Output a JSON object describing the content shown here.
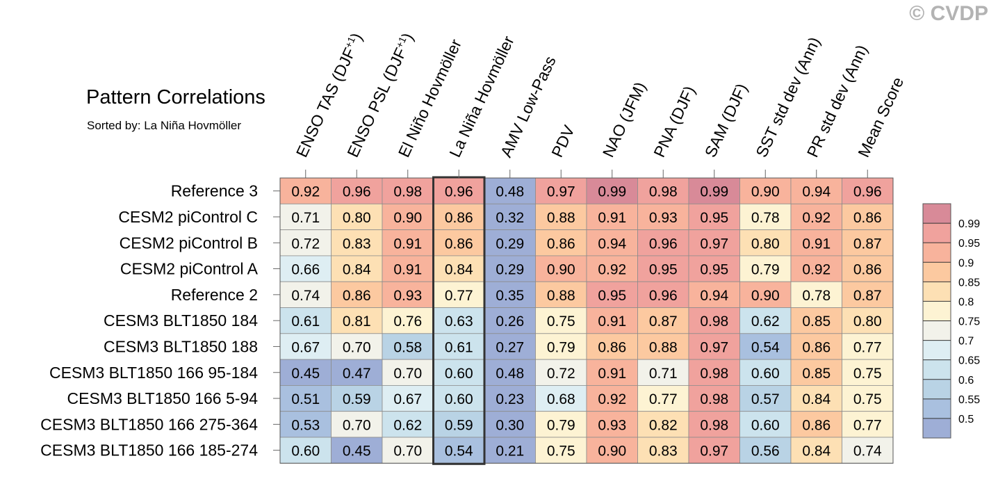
{
  "header": {
    "title": "Pattern Correlations",
    "subtitle": "Sorted by: La Niña Hovmöller",
    "copyright": "© CVDP"
  },
  "chart_data": {
    "type": "heatmap",
    "title": "Pattern Correlations",
    "subtitle": "Sorted by: La Niña Hovmöller",
    "columns": [
      "ENSO TAS (DJF+1)",
      "ENSO PSL (DJF+1)",
      "El Niño Hovmöller",
      "La Niña Hovmöller",
      "AMV Low-Pass",
      "PDV",
      "NAO (JFM)",
      "PNA (DJF)",
      "SAM (DJF)",
      "SST std dev (Ann)",
      "PR std dev (Ann)",
      "Mean Score"
    ],
    "rows": [
      "Reference 3",
      "CESM2 piControl C",
      "CESM2 piControl B",
      "CESM2 piControl A",
      "Reference 2",
      "CESM3 BLT1850 184",
      "CESM3 BLT1850 188",
      "CESM3 BLT1850 166 95-184",
      "CESM3 BLT1850 166 5-94",
      "CESM3 BLT1850 166 275-364",
      "CESM3 BLT1850 166 185-274"
    ],
    "values": [
      [
        0.92,
        0.96,
        0.98,
        0.96,
        0.48,
        0.97,
        0.99,
        0.98,
        0.99,
        0.9,
        0.94,
        0.96
      ],
      [
        0.71,
        0.8,
        0.9,
        0.86,
        0.32,
        0.88,
        0.91,
        0.93,
        0.95,
        0.78,
        0.92,
        0.86
      ],
      [
        0.72,
        0.83,
        0.91,
        0.86,
        0.29,
        0.86,
        0.94,
        0.96,
        0.97,
        0.8,
        0.91,
        0.87
      ],
      [
        0.66,
        0.84,
        0.91,
        0.84,
        0.29,
        0.9,
        0.92,
        0.95,
        0.95,
        0.79,
        0.92,
        0.86
      ],
      [
        0.74,
        0.86,
        0.93,
        0.77,
        0.35,
        0.88,
        0.95,
        0.96,
        0.94,
        0.9,
        0.78,
        0.87
      ],
      [
        0.61,
        0.81,
        0.76,
        0.63,
        0.26,
        0.75,
        0.91,
        0.87,
        0.98,
        0.62,
        0.85,
        0.8
      ],
      [
        0.67,
        0.7,
        0.58,
        0.61,
        0.27,
        0.79,
        0.86,
        0.88,
        0.97,
        0.54,
        0.86,
        0.77
      ],
      [
        0.45,
        0.47,
        0.7,
        0.6,
        0.48,
        0.72,
        0.91,
        0.71,
        0.98,
        0.6,
        0.85,
        0.75
      ],
      [
        0.51,
        0.59,
        0.67,
        0.6,
        0.23,
        0.68,
        0.92,
        0.77,
        0.98,
        0.57,
        0.84,
        0.75
      ],
      [
        0.53,
        0.7,
        0.62,
        0.59,
        0.3,
        0.79,
        0.93,
        0.82,
        0.98,
        0.6,
        0.86,
        0.77
      ],
      [
        0.6,
        0.45,
        0.7,
        0.54,
        0.21,
        0.75,
        0.9,
        0.83,
        0.97,
        0.56,
        0.84,
        0.74
      ]
    ],
    "highlighted_column": "La Niña Hovmöller",
    "colorbar": {
      "levels": [
        "0.99",
        "0.95",
        "0.9",
        "0.85",
        "0.8",
        "0.75",
        "0.7",
        "0.65",
        "0.6",
        "0.55",
        "0.5"
      ],
      "colors": [
        "#d88a98",
        "#f0a29d",
        "#f8b39c",
        "#fcc9a0",
        "#fde0b4",
        "#fdf3d3",
        "#f2f2ea",
        "#deeef3",
        "#cce3ed",
        "#b9d3e5",
        "#a9c0df",
        "#9eaed6"
      ]
    }
  }
}
